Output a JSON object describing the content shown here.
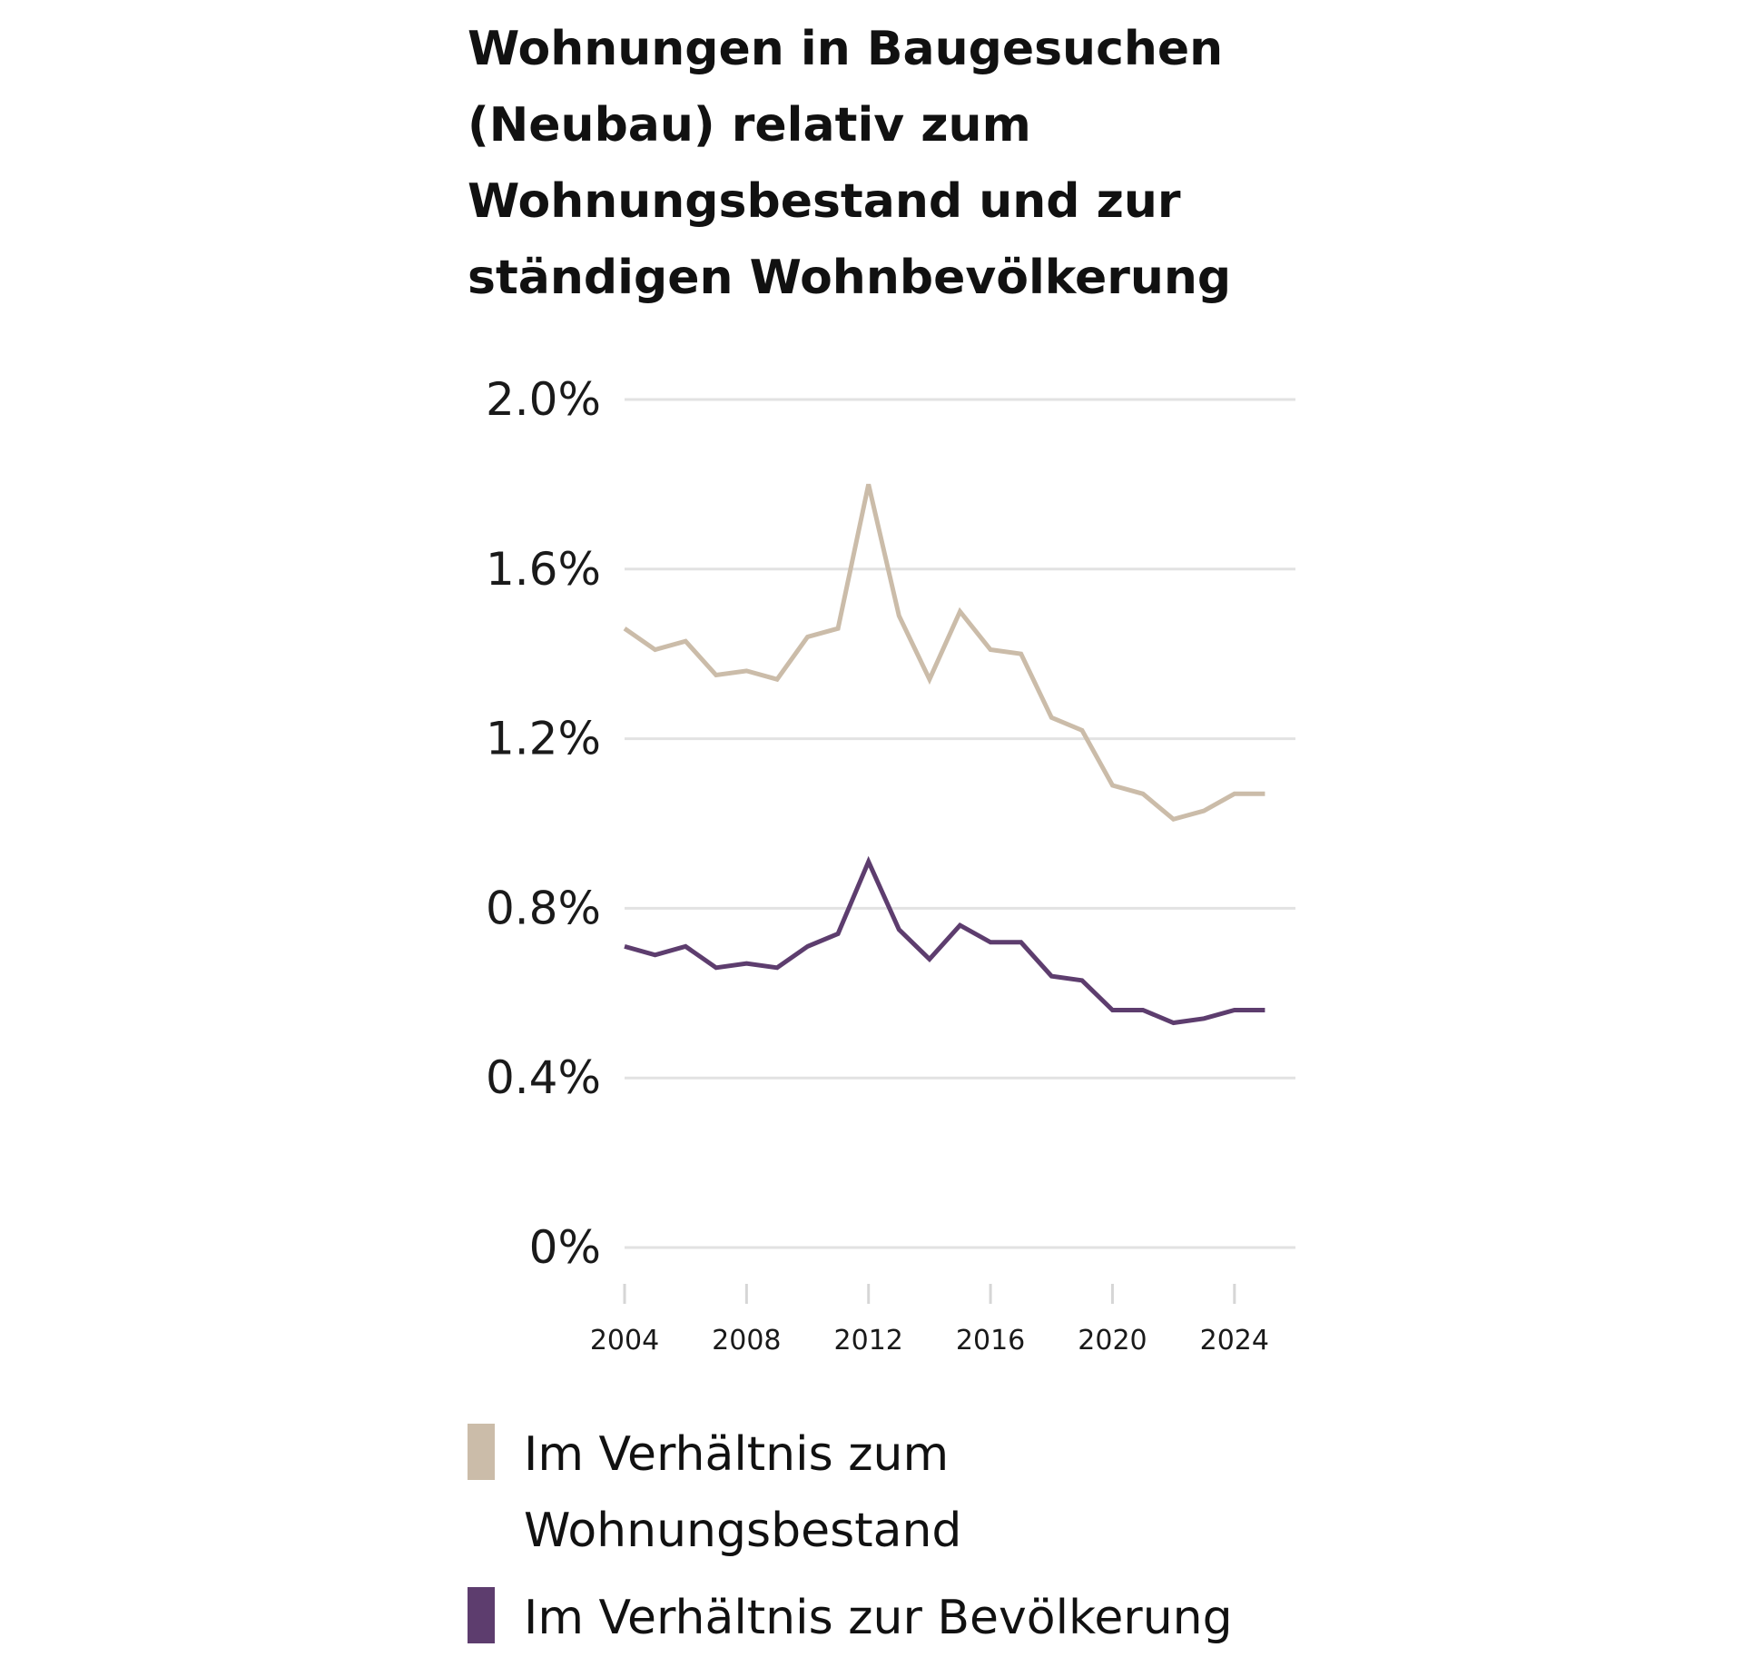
{
  "chart_data": {
    "type": "line",
    "title": "Wohnungen in Baugesuchen (Neubau) relativ zum Wohnungsbestand und zur ständigen Wohnbevölkerung",
    "x": [
      2004,
      2005,
      2006,
      2007,
      2008,
      2009,
      2010,
      2011,
      2012,
      2013,
      2014,
      2015,
      2016,
      2017,
      2018,
      2019,
      2020,
      2021,
      2022,
      2023,
      2024,
      2025
    ],
    "series": [
      {
        "name": "Im Verhältnis zum Wohnungsbestand",
        "color": "#cbbca9",
        "values": [
          1.46,
          1.41,
          1.43,
          1.35,
          1.36,
          1.34,
          1.44,
          1.46,
          1.8,
          1.49,
          1.34,
          1.5,
          1.41,
          1.4,
          1.25,
          1.22,
          1.09,
          1.07,
          1.01,
          1.03,
          1.07,
          1.07
        ]
      },
      {
        "name": "Im Verhältnis zur Bevölkerung",
        "color": "#5d3d6e",
        "values": [
          0.71,
          0.69,
          0.71,
          0.66,
          0.67,
          0.66,
          0.71,
          0.74,
          0.91,
          0.75,
          0.68,
          0.76,
          0.72,
          0.72,
          0.64,
          0.63,
          0.56,
          0.56,
          0.53,
          0.54,
          0.56,
          0.56
        ]
      }
    ],
    "y_ticks": [
      "2.0%",
      "1.6%",
      "1.2%",
      "0.8%",
      "0.4%",
      "0%"
    ],
    "y_tick_values": [
      2.0,
      1.6,
      1.2,
      0.8,
      0.4,
      0
    ],
    "x_ticks": [
      "2004",
      "2008",
      "2012",
      "2016",
      "2020",
      "2024"
    ],
    "x_tick_values": [
      2004,
      2008,
      2012,
      2016,
      2020,
      2024
    ],
    "xlim": [
      2004,
      2026
    ],
    "ylim": [
      0,
      2.0
    ],
    "grid": true,
    "legend_position": "bottom",
    "xlabel": "",
    "ylabel": ""
  },
  "legend": [
    {
      "label": "Im Verhältnis zum Wohnungsbestand",
      "color": "#cbbca9"
    },
    {
      "label": "Im Verhältnis zur Bevölkerung",
      "color": "#5d3d6e"
    }
  ]
}
